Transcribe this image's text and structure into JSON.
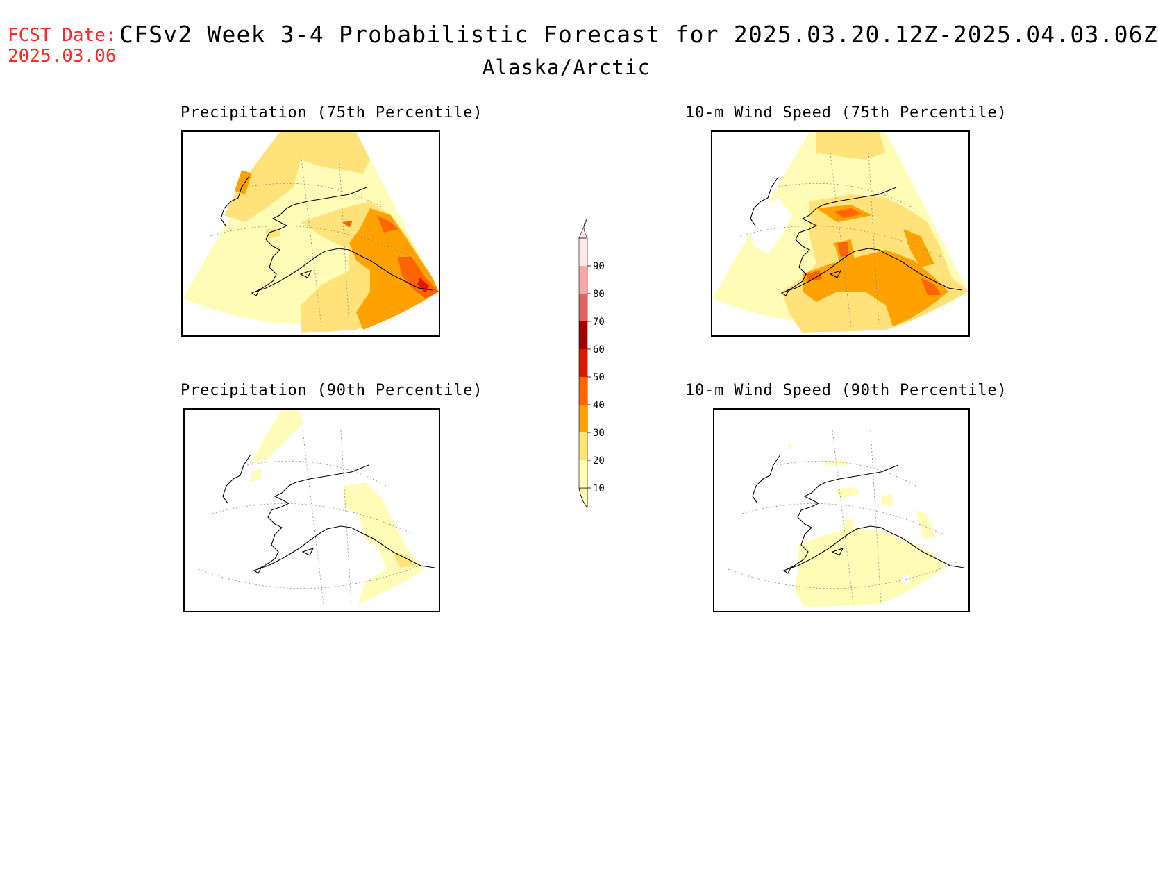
{
  "header": {
    "fcst_label": "FCST Date:",
    "fcst_date": "2025.03.06",
    "title": "CFSv2 Week 3-4 Probabilistic Forecast for 2025.03.20.12Z-2025.04.03.06Z",
    "subtitle": "Alaska/Arctic"
  },
  "panels": {
    "precip75": {
      "title": "Precipitation (75th Percentile)"
    },
    "wind75": {
      "title": "10-m Wind Speed (75th Percentile)"
    },
    "precip90": {
      "title": "Precipitation (90th Percentile)"
    },
    "wind90": {
      "title": "10-m Wind Speed (90th Percentile)"
    }
  },
  "colorbar": {
    "levels": [
      10,
      20,
      30,
      40,
      50,
      60,
      70,
      80,
      90
    ],
    "colors": [
      "#fffcb8",
      "#ffe27a",
      "#ffa200",
      "#ff6400",
      "#e01500",
      "#a30000",
      "#dc6465",
      "#f5a8a8",
      "#ffe8e8"
    ],
    "labels": [
      "10",
      "20",
      "30",
      "40",
      "50",
      "60",
      "70",
      "80",
      "90"
    ]
  }
}
